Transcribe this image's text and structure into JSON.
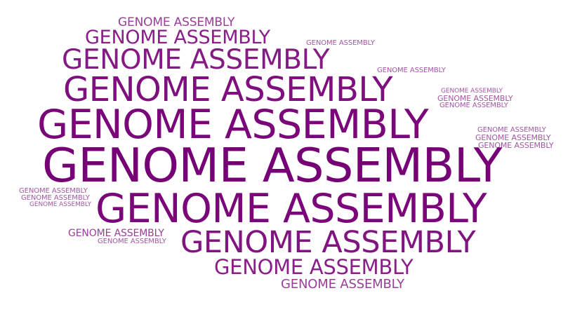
{
  "cloud": {
    "words": [
      {
        "text": "GENOME ASSEMBLY",
        "color": "#9a3d9a"
      },
      {
        "text": "GENOME ASSEMBLY",
        "color": "#8a1f8a"
      },
      {
        "text": "GENOME ASSEMBLY",
        "color": "#a357a3"
      },
      {
        "text": "GENOME ASSEMBLY",
        "color": "#851a85"
      },
      {
        "text": "GENOME ASSEMBLY",
        "color": "#a357a3"
      },
      {
        "text": "GENOME ASSEMBLY",
        "color": "#7f0e7f"
      },
      {
        "text": "GENOME ASSEMBLY",
        "color": "#a357a3"
      },
      {
        "text": "GENOME ASSEMBLY",
        "color": "#a357a3"
      },
      {
        "text": "GENOME ASSEMBLY",
        "color": "#a357a3"
      },
      {
        "text": "GENOME ASSEMBLY",
        "color": "#7a067a"
      },
      {
        "text": "GENOME ASSEMBLY",
        "color": "#a357a3"
      },
      {
        "text": "GENOME ASSEMBLY",
        "color": "#a357a3"
      },
      {
        "text": "GENOME ASSEMBLY",
        "color": "#a357a3"
      },
      {
        "text": "GENOME ASSEMBLY",
        "color": "#760076"
      },
      {
        "text": "GENOME ASSEMBLY",
        "color": "#a357a3"
      },
      {
        "text": "GENOME ASSEMBLY",
        "color": "#a357a3"
      },
      {
        "text": "GENOME ASSEMBLY",
        "color": "#a357a3"
      },
      {
        "text": "GENOME ASSEMBLY",
        "color": "#7a067a"
      },
      {
        "text": "GENOME ASSEMBLY",
        "color": "#9a3d9a"
      },
      {
        "text": "GENOME ASSEMBLY",
        "color": "#a357a3"
      },
      {
        "text": "GENOME ASSEMBLY",
        "color": "#821482"
      },
      {
        "text": "GENOME ASSEMBLY",
        "color": "#8a1f8a"
      },
      {
        "text": "GENOME ASSEMBLY",
        "color": "#9a3d9a"
      }
    ]
  }
}
